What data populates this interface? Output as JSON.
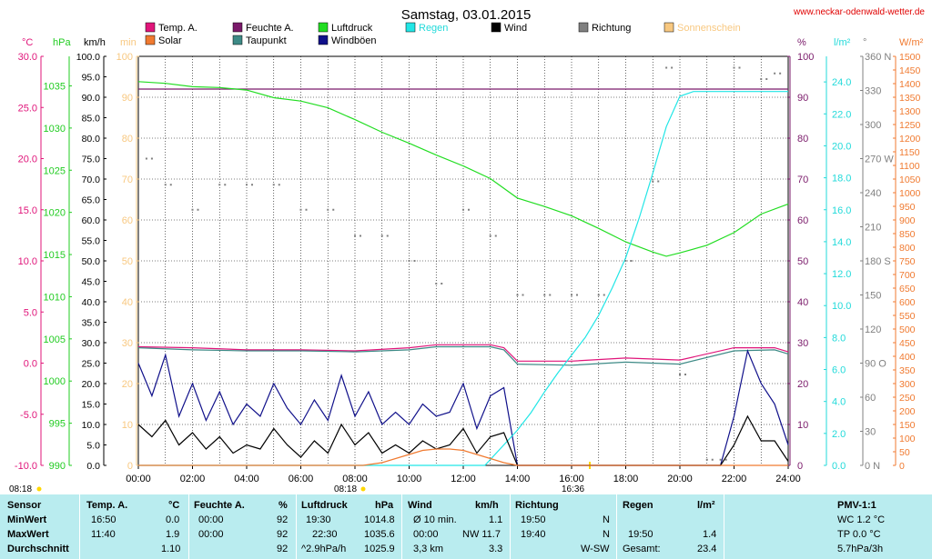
{
  "header": {
    "title": "Samstag, 03.01.2015",
    "site": "www.neckar-odenwald-wetter.de"
  },
  "legend": [
    {
      "label": "Temp. A.",
      "color": "#e0157a"
    },
    {
      "label": "Solar",
      "color": "#f07a30"
    },
    {
      "label": "Feuchte A.",
      "color": "#7a1a6a"
    },
    {
      "label": "Taupunkt",
      "color": "#3d8a86"
    },
    {
      "label": "Luftdruck",
      "color": "#22dd22"
    },
    {
      "label": "Windböen",
      "color": "#10108a"
    },
    {
      "label": "Regen",
      "color": "#22e6e6"
    },
    {
      "label": "Wind",
      "color": "#000000"
    },
    {
      "label": "Richtung",
      "color": "#808080"
    },
    {
      "label": "Sonnenschein",
      "color": "#f8c880"
    }
  ],
  "units": {
    "temp": "°C",
    "hpa": "hPa",
    "kmh": "km/h",
    "min": "min",
    "pct": "%",
    "rain": "l/m²",
    "deg": "°",
    "solar": "W/m²"
  },
  "markers": {
    "sunrise": "08:18",
    "sunrise_top": "08:18",
    "sunset": "16:36"
  },
  "chart_data": {
    "type": "line",
    "title": "Samstag, 03.01.2015",
    "x_labels": [
      "00:00",
      "02:00",
      "04:00",
      "06:00",
      "08:00",
      "10:00",
      "12:00",
      "14:00",
      "16:00",
      "18:00",
      "20:00",
      "22:00",
      "24:00"
    ],
    "axes": {
      "temp": {
        "ticks": [
          "30.0",
          "25.0",
          "20.0",
          "15.0",
          "10.0",
          "5.0",
          "0.0",
          "-5.0",
          "-10.0"
        ],
        "range": [
          -10,
          30
        ]
      },
      "hpa": {
        "ticks": [
          "1035",
          "1030",
          "1025",
          "1020",
          "1015",
          "1010",
          "1005",
          "1000",
          "995",
          "990"
        ],
        "range": [
          990,
          1038.5
        ]
      },
      "kmh": {
        "ticks": [
          "100.0",
          "95.0",
          "90.0",
          "85.0",
          "80.0",
          "75.0",
          "70.0",
          "65.0",
          "60.0",
          "55.0",
          "50.0",
          "45.0",
          "40.0",
          "35.0",
          "30.0",
          "25.0",
          "20.0",
          "15.0",
          "10.0",
          "5.0",
          "0.0"
        ],
        "range": [
          0,
          100
        ]
      },
      "min": {
        "ticks": [
          "100",
          "90",
          "80",
          "70",
          "60",
          "50",
          "40",
          "30",
          "20",
          "10",
          "0"
        ],
        "range": [
          0,
          100
        ]
      },
      "pct": {
        "ticks": [
          "100",
          "90",
          "80",
          "70",
          "60",
          "50",
          "40",
          "30",
          "20",
          "10",
          "0"
        ],
        "range": [
          0,
          100
        ]
      },
      "rain": {
        "ticks": [
          "24.0",
          "22.0",
          "20.0",
          "18.0",
          "16.0",
          "14.0",
          "12.0",
          "10.0",
          "8.0",
          "6.0",
          "4.0",
          "2.0",
          "0.0"
        ],
        "range": [
          0,
          25.6
        ]
      },
      "deg": {
        "ticks": [
          "360 N",
          "330",
          "300",
          "270 W",
          "240",
          "210",
          "180 S",
          "150",
          "120",
          "90 O",
          "60",
          "30",
          "0 N"
        ],
        "range": [
          0,
          360
        ]
      },
      "solar": {
        "ticks": [
          "1500",
          "1450",
          "1400",
          "1350",
          "1300",
          "1250",
          "1200",
          "1150",
          "1100",
          "1050",
          "1000",
          "950",
          "900",
          "850",
          "800",
          "750",
          "700",
          "650",
          "600",
          "550",
          "500",
          "450",
          "400",
          "350",
          "300",
          "250",
          "200",
          "150",
          "100",
          "50",
          "0"
        ],
        "range": [
          0,
          1500
        ]
      }
    },
    "series": [
      {
        "name": "Temp. A.",
        "axis": "temp",
        "x": [
          0,
          2,
          4,
          6,
          8,
          10,
          11,
          13,
          13.5,
          14,
          16,
          18,
          20,
          22,
          23.5,
          24
        ],
        "y": [
          1.6,
          1.5,
          1.3,
          1.3,
          1.2,
          1.5,
          1.8,
          1.8,
          1.5,
          0.2,
          0.2,
          0.5,
          0.3,
          1.5,
          1.5,
          1.1
        ]
      },
      {
        "name": "Feuchte A.",
        "axis": "pct",
        "x": [
          0,
          24
        ],
        "y": [
          92,
          92
        ]
      },
      {
        "name": "Taupunkt",
        "axis": "temp",
        "x": [
          0,
          2,
          4,
          6,
          8,
          10,
          11,
          13,
          13.5,
          14,
          16,
          18,
          20,
          22,
          23.5,
          24
        ],
        "y": [
          1.5,
          1.3,
          1.2,
          1.2,
          1.1,
          1.3,
          1.6,
          1.6,
          1.3,
          -0.1,
          -0.2,
          0.1,
          -0.1,
          1.2,
          1.3,
          0.9
        ]
      },
      {
        "name": "Luftdruck",
        "axis": "hpa",
        "x": [
          0,
          1,
          2,
          3,
          4,
          5,
          6,
          7,
          8,
          9,
          10,
          11,
          12,
          13,
          14,
          15,
          16,
          17,
          18,
          19,
          19.5,
          20,
          21,
          22,
          23,
          24
        ],
        "y": [
          1035.5,
          1035.3,
          1034.9,
          1034.8,
          1034.5,
          1033.6,
          1033.2,
          1032.4,
          1031,
          1029.5,
          1028.2,
          1026.8,
          1025.5,
          1024,
          1021.7,
          1020.7,
          1019.6,
          1018.1,
          1016.5,
          1015.3,
          1014.8,
          1015.2,
          1016.1,
          1017.6,
          1019.8,
          1021
        ]
      },
      {
        "name": "Windböen",
        "axis": "kmh",
        "x": [
          0,
          0.5,
          1,
          1.5,
          2,
          2.5,
          3,
          3.5,
          4,
          4.5,
          5,
          5.5,
          6,
          6.5,
          7,
          7.5,
          8,
          8.5,
          9,
          9.5,
          10,
          10.5,
          11,
          11.5,
          12,
          12.5,
          13,
          13.5,
          14,
          14.3,
          21.5,
          22,
          22.5,
          23,
          23.5,
          24
        ],
        "y": [
          25,
          17,
          27,
          12,
          20,
          11,
          18,
          10,
          15,
          12,
          20,
          14,
          10,
          16,
          11,
          22,
          12,
          18,
          10,
          13,
          10,
          15,
          12,
          13,
          20,
          9,
          17,
          19,
          0,
          0,
          0,
          12,
          28,
          20,
          15,
          5
        ]
      },
      {
        "name": "Regen",
        "axis": "rain",
        "x": [
          0,
          12.8,
          14,
          14.5,
          15,
          15.5,
          16,
          16.5,
          17,
          17.5,
          18,
          18.5,
          19,
          19.5,
          20,
          20.5,
          21,
          21.5,
          22,
          24
        ],
        "y": [
          0,
          0,
          2.2,
          3.3,
          4.6,
          5.8,
          6.9,
          8.0,
          9.4,
          11.1,
          13,
          15.5,
          18.3,
          21.2,
          23.1,
          23.4,
          23.4,
          23.4,
          23.4,
          23.4
        ]
      },
      {
        "name": "Wind",
        "axis": "kmh",
        "x": [
          0,
          0.5,
          1,
          1.5,
          2,
          2.5,
          3,
          3.5,
          4,
          4.5,
          5,
          5.5,
          6,
          6.5,
          7,
          7.5,
          8,
          8.5,
          9,
          9.5,
          10,
          10.5,
          11,
          11.5,
          12,
          12.5,
          13,
          13.5,
          14,
          14.2,
          21.5,
          22,
          22.5,
          23,
          23.5,
          24
        ],
        "y": [
          10,
          7,
          11,
          5,
          8,
          4,
          7,
          3,
          5,
          4,
          9,
          5,
          2,
          6,
          3,
          10,
          5,
          8,
          3,
          5,
          3,
          6,
          4,
          5,
          9,
          3,
          7,
          8,
          0,
          0,
          0,
          5,
          12,
          6,
          6,
          1
        ]
      },
      {
        "name": "Richtung",
        "axis": "deg",
        "x": [
          0.3,
          1,
          2,
          3,
          4,
          5,
          6,
          7,
          8,
          9,
          10,
          11,
          12,
          13,
          14,
          15,
          16,
          17,
          18,
          19,
          19.5,
          20,
          21,
          21.5,
          22,
          23,
          23.5
        ],
        "y": [
          270,
          247,
          225,
          247,
          247,
          247,
          225,
          225,
          202,
          202,
          180,
          160,
          225,
          202,
          150,
          150,
          150,
          150,
          180,
          250,
          350,
          80,
          5,
          5,
          350,
          340,
          345
        ]
      },
      {
        "name": "Solar",
        "axis": "solar",
        "x": [
          0,
          8.3,
          9,
          10,
          10.5,
          11,
          11.5,
          12,
          12.5,
          13,
          13.5,
          14,
          16.6,
          24
        ],
        "y": [
          0,
          0,
          10,
          40,
          55,
          60,
          60,
          55,
          40,
          25,
          10,
          0,
          0,
          0
        ]
      }
    ],
    "grid": true
  },
  "table": {
    "headers": {
      "sensor": "Sensor",
      "temp": "Temp. A.",
      "temp_u": "°C",
      "feuchte": "Feuchte A.",
      "feuchte_u": "%",
      "luft": "Luftdruck",
      "luft_u": "hPa",
      "wind": "Wind",
      "wind_u": "km/h",
      "richtung": "Richtung",
      "regen": "Regen",
      "regen_u": "l/m²",
      "pmv": "PMV-1:1"
    },
    "rows": [
      {
        "label": "MinWert",
        "t_time": "16:50",
        "t_val": "0.0",
        "f_time": "00:00",
        "f_val": "92",
        "l_time": "19:30",
        "l_val": "1014.8",
        "w_time": "Ø 10 min.",
        "w_val": "1.1",
        "r_time": "19:50",
        "r_val": "N",
        "rg_time": "",
        "rg_val": "",
        "pmv": "WC 1.2 °C"
      },
      {
        "label": "MaxWert",
        "t_time": "11:40",
        "t_val": "1.9",
        "f_time": "00:00",
        "f_val": "92",
        "l_time": "22:30",
        "l_val": "1035.6",
        "w_time": "00:00",
        "w_val": "NW 11.7",
        "r_time": "19:40",
        "r_val": "N",
        "rg_time": "19:50",
        "rg_val": "1.4",
        "pmv": "TP 0.0 °C"
      },
      {
        "label": "Durchschnitt",
        "t_time": "",
        "t_val": "1.10",
        "f_time": "",
        "f_val": "92",
        "l_time": "^2.9hPa/h",
        "l_val": "1025.9",
        "w_time": "3,3 km",
        "w_val": "3.3",
        "r_time": "",
        "r_val": "W-SW",
        "rg_time": "Gesamt:",
        "rg_val": "23.4",
        "pmv": "5.7hPa/3h"
      }
    ]
  }
}
